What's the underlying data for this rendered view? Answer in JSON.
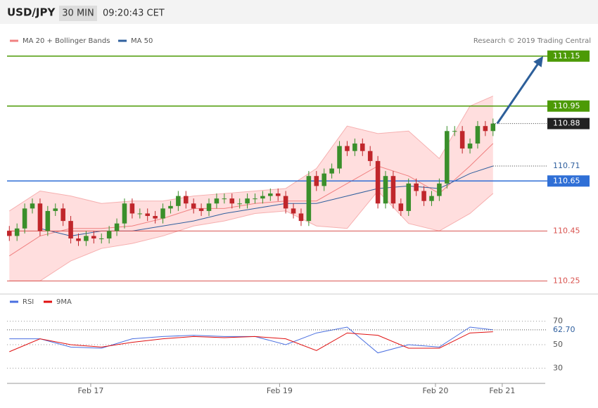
{
  "chart_data": {
    "type": "candlestick",
    "title": "USD/JPY",
    "interval": "30 MIN",
    "time": "09:20:43 CET",
    "credit": "Research © 2019 Trading Central",
    "xlim": [
      -0.3,
      69.8
    ],
    "ylim": [
      110.22,
      111.2
    ],
    "xticks": [
      {
        "value": 10.6,
        "label": "Feb 17"
      },
      {
        "value": 35.2,
        "label": "Feb 19"
      },
      {
        "value": 55.5,
        "label": "Feb 20"
      },
      {
        "value": 64.2,
        "label": "Feb 21"
      }
    ],
    "candles": {
      "up_color": "#3a8f2b",
      "down_color": "#c0262b",
      "open": [
        110.45,
        110.43,
        110.46,
        110.54,
        110.56,
        110.45,
        110.53,
        110.54,
        110.49,
        110.42,
        110.41,
        110.43,
        110.42,
        110.42,
        110.45,
        110.48,
        110.56,
        110.52,
        110.52,
        110.51,
        110.5,
        110.54,
        110.55,
        110.59,
        110.56,
        110.54,
        110.53,
        110.56,
        110.58,
        110.58,
        110.56,
        110.56,
        110.58,
        110.58,
        110.59,
        110.6,
        110.59,
        110.54,
        110.52,
        110.49,
        110.67,
        110.63,
        110.68,
        110.7,
        110.79,
        110.77,
        110.8,
        110.77,
        110.73,
        110.56,
        110.67,
        110.56,
        110.53,
        110.64,
        110.61,
        110.57,
        110.59,
        110.64,
        110.85,
        110.85,
        110.78,
        110.8,
        110.87,
        110.85
      ],
      "high": [
        110.47,
        110.48,
        110.56,
        110.58,
        110.58,
        110.55,
        110.56,
        110.56,
        110.51,
        110.44,
        110.45,
        110.45,
        110.44,
        110.47,
        110.5,
        110.58,
        110.58,
        110.54,
        110.54,
        110.53,
        110.56,
        110.57,
        110.61,
        110.61,
        110.58,
        110.56,
        110.58,
        110.6,
        110.6,
        110.6,
        110.58,
        110.6,
        110.6,
        110.61,
        110.62,
        110.62,
        110.61,
        110.56,
        110.54,
        110.69,
        110.69,
        110.7,
        110.72,
        110.81,
        110.81,
        110.82,
        110.82,
        110.79,
        110.75,
        110.69,
        110.69,
        110.58,
        110.66,
        110.66,
        110.63,
        110.61,
        110.66,
        110.87,
        110.87,
        110.87,
        110.82,
        110.89,
        110.89,
        110.9
      ],
      "low": [
        110.41,
        110.41,
        110.44,
        110.52,
        110.43,
        110.43,
        110.51,
        110.47,
        110.4,
        110.39,
        110.39,
        110.4,
        110.4,
        110.4,
        110.43,
        110.46,
        110.5,
        110.5,
        110.49,
        110.48,
        110.48,
        110.52,
        110.53,
        110.54,
        110.52,
        110.51,
        110.51,
        110.54,
        110.56,
        110.54,
        110.54,
        110.54,
        110.56,
        110.56,
        110.57,
        110.57,
        110.52,
        110.5,
        110.47,
        110.47,
        110.61,
        110.61,
        110.66,
        110.68,
        110.75,
        110.75,
        110.75,
        110.71,
        110.54,
        110.54,
        110.54,
        110.51,
        110.51,
        110.59,
        110.55,
        110.55,
        110.57,
        110.62,
        110.83,
        110.76,
        110.76,
        110.78,
        110.83,
        110.83
      ],
      "close": [
        110.43,
        110.46,
        110.54,
        110.56,
        110.45,
        110.53,
        110.54,
        110.49,
        110.42,
        110.41,
        110.43,
        110.42,
        110.42,
        110.45,
        110.48,
        110.56,
        110.52,
        110.52,
        110.51,
        110.5,
        110.54,
        110.55,
        110.59,
        110.56,
        110.54,
        110.53,
        110.56,
        110.58,
        110.58,
        110.56,
        110.56,
        110.58,
        110.58,
        110.59,
        110.6,
        110.59,
        110.54,
        110.52,
        110.49,
        110.67,
        110.63,
        110.68,
        110.7,
        110.79,
        110.77,
        110.8,
        110.77,
        110.73,
        110.56,
        110.67,
        110.56,
        110.53,
        110.64,
        110.61,
        110.57,
        110.59,
        110.64,
        110.85,
        110.85,
        110.78,
        110.8,
        110.87,
        110.85,
        110.88
      ]
    },
    "lines_x": [
      0,
      4,
      8,
      12,
      16,
      20,
      24,
      28,
      32,
      36,
      40,
      44,
      48,
      52,
      56,
      60,
      63
    ],
    "series": [
      {
        "name": "MA 20 + Bollinger Bands",
        "color": "#f08080",
        "band_color": "#ffd6d6",
        "values": [
          110.35,
          110.43,
          110.46,
          110.46,
          110.47,
          110.5,
          110.54,
          110.54,
          110.56,
          110.57,
          110.57,
          110.64,
          110.71,
          110.67,
          110.6,
          110.71,
          110.8
        ],
        "upper": [
          110.53,
          110.61,
          110.59,
          110.56,
          110.57,
          110.57,
          110.59,
          110.6,
          110.61,
          110.62,
          110.7,
          110.87,
          110.84,
          110.85,
          110.74,
          110.95,
          110.99
        ],
        "lower": [
          110.25,
          110.25,
          110.33,
          110.38,
          110.4,
          110.43,
          110.47,
          110.49,
          110.52,
          110.53,
          110.47,
          110.46,
          110.61,
          110.48,
          110.45,
          110.52,
          110.6
        ]
      },
      {
        "name": "MA 50",
        "color": "#2f5f9e",
        "values": [
          null,
          110.46,
          110.43,
          110.45,
          110.45,
          110.47,
          110.49,
          110.52,
          110.54,
          110.56,
          110.56,
          110.59,
          110.62,
          110.63,
          110.62,
          110.68,
          110.71
        ]
      }
    ],
    "levels": [
      {
        "value": 111.15,
        "color": "#4c9a06",
        "filled": true
      },
      {
        "value": 110.95,
        "color": "#4c9a06",
        "filled": true
      },
      {
        "value": 110.65,
        "color": "#2f6fd6",
        "filled": true
      },
      {
        "value": 110.45,
        "color": "#d9534f",
        "filled": false
      },
      {
        "value": 110.25,
        "color": "#d9534f",
        "filled": false
      }
    ],
    "markers": [
      {
        "value": 110.88,
        "color": "#222222",
        "filled": true
      },
      {
        "value": 110.71,
        "color": "#2f5f9e",
        "filled": false
      }
    ],
    "rsi": {
      "ylim": [
        20,
        77
      ],
      "yticks": [
        30,
        50,
        70
      ],
      "last": {
        "value": 62.7,
        "label": "62.70"
      },
      "series": [
        {
          "name": "RSI",
          "color": "#4a6fe0",
          "values": [
            55,
            55,
            48,
            47,
            55,
            57,
            58,
            57,
            57,
            50,
            60,
            65,
            43,
            50,
            48,
            65,
            62.7
          ]
        },
        {
          "name": "9MA",
          "color": "#e01010",
          "values": [
            44,
            55,
            50,
            48,
            52,
            55,
            57,
            56,
            57,
            55,
            45,
            60,
            58,
            47,
            47,
            60,
            61
          ]
        }
      ]
    }
  }
}
